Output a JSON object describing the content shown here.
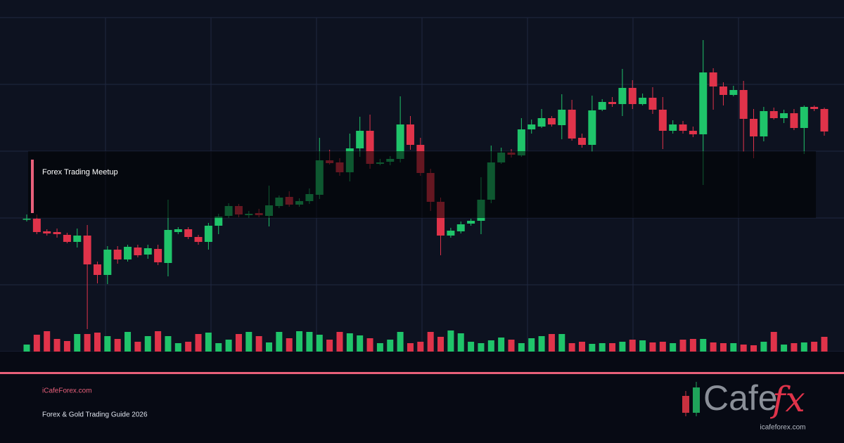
{
  "chart_data": {
    "type": "candlestick",
    "open": [
      188,
      189,
      171,
      170,
      166,
      156,
      165,
      124,
      109,
      145,
      131,
      148,
      138,
      146,
      126,
      170,
      174,
      163,
      156,
      179,
      193,
      207,
      194,
      197,
      193,
      207,
      220,
      209,
      214,
      223,
      272,
      269,
      255,
      289,
      314,
      267,
      270,
      274,
      323,
      294,
      254,
      213,
      165,
      171,
      182,
      186,
      216,
      269,
      283,
      279,
      316,
      320,
      332,
      322,
      344,
      304,
      294,
      344,
      355,
      352,
      375,
      352,
      361,
      344,
      314,
      323,
      314,
      309,
      397,
      377,
      365,
      372,
      331,
      306,
      342,
      332,
      339,
      318,
      348,
      345
    ],
    "high": [
      195,
      195,
      174,
      175,
      169,
      175,
      180,
      128,
      150,
      150,
      152,
      152,
      152,
      152,
      216,
      177,
      177,
      166,
      183,
      196,
      211,
      210,
      200,
      203,
      236,
      222,
      228,
      218,
      232,
      304,
      287,
      275,
      310,
      334,
      337,
      274,
      278,
      363,
      335,
      304,
      260,
      219,
      176,
      185,
      189,
      248,
      293,
      290,
      288,
      332,
      330,
      345,
      335,
      366,
      358,
      310,
      364,
      359,
      362,
      402,
      386,
      367,
      376,
      362,
      329,
      328,
      320,
      443,
      403,
      383,
      378,
      385,
      345,
      348,
      347,
      344,
      345,
      350,
      350,
      347
    ],
    "low": [
      185,
      167,
      165,
      162,
      154,
      148,
      32,
      97,
      96,
      125,
      128,
      134,
      132,
      123,
      107,
      167,
      160,
      152,
      145,
      167,
      190,
      191,
      190,
      191,
      178,
      204,
      206,
      206,
      210,
      217,
      266,
      250,
      242,
      277,
      260,
      265,
      265,
      269,
      287,
      250,
      200,
      137,
      162,
      168,
      179,
      167,
      211,
      267,
      276,
      277,
      310,
      318,
      320,
      302,
      300,
      290,
      284,
      342,
      348,
      335,
      345,
      350,
      338,
      288,
      310,
      310,
      305,
      237,
      344,
      350,
      363,
      284,
      275,
      299,
      330,
      325,
      315,
      281,
      342,
      307
    ],
    "close": [
      189,
      170,
      168,
      167,
      156,
      165,
      124,
      109,
      145,
      131,
      149,
      137,
      147,
      127,
      173,
      174,
      163,
      156,
      179,
      192,
      207,
      195,
      196,
      194,
      208,
      219,
      209,
      214,
      224,
      272,
      268,
      255,
      289,
      314,
      267,
      269,
      274,
      323,
      294,
      254,
      213,
      165,
      172,
      181,
      186,
      216,
      269,
      283,
      280,
      316,
      323,
      332,
      323,
      344,
      303,
      294,
      343,
      355,
      352,
      375,
      352,
      361,
      344,
      314,
      323,
      314,
      309,
      397,
      377,
      365,
      372,
      331,
      306,
      342,
      332,
      339,
      318,
      348,
      345,
      313
    ],
    "volume": [
      10,
      24,
      29,
      18,
      15,
      25,
      25,
      27,
      22,
      18,
      28,
      14,
      22,
      29,
      22,
      12,
      14,
      25,
      27,
      12,
      17,
      25,
      28,
      22,
      13,
      28,
      19,
      29,
      28,
      24,
      17,
      28,
      26,
      23,
      19,
      12,
      17,
      28,
      12,
      14,
      28,
      21,
      30,
      26,
      14,
      12,
      16,
      20,
      17,
      12,
      19,
      22,
      25,
      25,
      12,
      14,
      11,
      12,
      12,
      14,
      17,
      16,
      13,
      14,
      12,
      17,
      18,
      18,
      13,
      12,
      12,
      10,
      9,
      14,
      28,
      10,
      12,
      13,
      14,
      21
    ],
    "up_color": "#1fc46a",
    "down_color": "#e0334a",
    "ylim": [
      0,
      500
    ],
    "volume_lim": [
      0,
      100
    ]
  },
  "banner": {
    "label": "Forex Trading Meetup",
    "site": "iCafeForex.com",
    "subtitle": "Forex & Gold Trading Guide 2026",
    "logo_text": "Cafe",
    "logo_accent": "fx",
    "logo_url": "icafeforex.com"
  }
}
